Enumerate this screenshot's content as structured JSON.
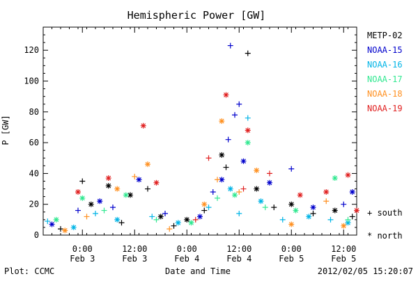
{
  "chart_data": {
    "type": "scatter",
    "title": "Hemispheric Power [GW]",
    "ylabel": "P [GW]",
    "xlabel": "Date and Time",
    "ylim": [
      0,
      135
    ],
    "yticks": [
      0,
      20,
      40,
      60,
      80,
      100,
      120
    ],
    "xlim": [
      "2012-02-02T15:00",
      "2012-02-05T15:00"
    ],
    "xticks": [
      {
        "time": "2012-02-03T00:00",
        "line1": "0:00",
        "line2": "Feb 3"
      },
      {
        "time": "2012-02-03T12:00",
        "line1": "12:00",
        "line2": "Feb 3"
      },
      {
        "time": "2012-02-04T00:00",
        "line1": "0:00",
        "line2": "Feb 4"
      },
      {
        "time": "2012-02-04T12:00",
        "line1": "12:00",
        "line2": "Feb 4"
      },
      {
        "time": "2012-02-05T00:00",
        "line1": "0:00",
        "line2": "Feb 5"
      },
      {
        "time": "2012-02-05T12:00",
        "line1": "12:00",
        "line2": "Feb 5"
      }
    ],
    "legend_placement": "right",
    "series": [
      {
        "name": "METP-02",
        "color": "#000000",
        "points": [
          {
            "x": "2012-02-02T19:00",
            "y": 4,
            "h": "south"
          },
          {
            "x": "2012-02-03T00:00",
            "y": 35,
            "h": "south"
          },
          {
            "x": "2012-02-03T02:00",
            "y": 20,
            "h": "north"
          },
          {
            "x": "2012-02-03T06:00",
            "y": 32,
            "h": "north"
          },
          {
            "x": "2012-02-03T09:00",
            "y": 8,
            "h": "south"
          },
          {
            "x": "2012-02-03T11:00",
            "y": 26,
            "h": "north"
          },
          {
            "x": "2012-02-03T15:00",
            "y": 30,
            "h": "south"
          },
          {
            "x": "2012-02-03T18:00",
            "y": 12,
            "h": "north"
          },
          {
            "x": "2012-02-03T21:00",
            "y": 6,
            "h": "south"
          },
          {
            "x": "2012-02-04T00:00",
            "y": 10,
            "h": "north"
          },
          {
            "x": "2012-02-04T04:00",
            "y": 16,
            "h": "south"
          },
          {
            "x": "2012-02-04T08:00",
            "y": 52,
            "h": "north"
          },
          {
            "x": "2012-02-04T09:00",
            "y": 44,
            "h": "south"
          },
          {
            "x": "2012-02-04T14:00",
            "y": 118,
            "h": "south"
          },
          {
            "x": "2012-02-04T16:00",
            "y": 30,
            "h": "north"
          },
          {
            "x": "2012-02-04T20:00",
            "y": 18,
            "h": "south"
          },
          {
            "x": "2012-02-05T00:00",
            "y": 20,
            "h": "north"
          },
          {
            "x": "2012-02-05T05:00",
            "y": 14,
            "h": "south"
          },
          {
            "x": "2012-02-05T10:00",
            "y": 16,
            "h": "north"
          },
          {
            "x": "2012-02-05T14:00",
            "y": 12,
            "h": "south"
          }
        ]
      },
      {
        "name": "NOAA-15",
        "color": "#0000cc",
        "points": [
          {
            "x": "2012-02-02T17:00",
            "y": 7,
            "h": "north"
          },
          {
            "x": "2012-02-02T23:00",
            "y": 16,
            "h": "south"
          },
          {
            "x": "2012-02-03T04:00",
            "y": 22,
            "h": "north"
          },
          {
            "x": "2012-02-03T07:00",
            "y": 18,
            "h": "south"
          },
          {
            "x": "2012-02-03T13:00",
            "y": 36,
            "h": "north"
          },
          {
            "x": "2012-02-03T19:00",
            "y": 14,
            "h": "south"
          },
          {
            "x": "2012-02-04T03:00",
            "y": 12,
            "h": "north"
          },
          {
            "x": "2012-02-04T06:00",
            "y": 28,
            "h": "south"
          },
          {
            "x": "2012-02-04T08:00",
            "y": 36,
            "h": "north"
          },
          {
            "x": "2012-02-04T09:30",
            "y": 62,
            "h": "south"
          },
          {
            "x": "2012-02-04T10:00",
            "y": 123,
            "h": "south"
          },
          {
            "x": "2012-02-04T11:00",
            "y": 78,
            "h": "south"
          },
          {
            "x": "2012-02-04T12:00",
            "y": 85,
            "h": "south"
          },
          {
            "x": "2012-02-04T13:00",
            "y": 48,
            "h": "north"
          },
          {
            "x": "2012-02-04T19:00",
            "y": 34,
            "h": "north"
          },
          {
            "x": "2012-02-05T00:00",
            "y": 43,
            "h": "south"
          },
          {
            "x": "2012-02-05T05:00",
            "y": 18,
            "h": "north"
          },
          {
            "x": "2012-02-05T12:00",
            "y": 20,
            "h": "south"
          },
          {
            "x": "2012-02-05T14:00",
            "y": 28,
            "h": "north"
          }
        ]
      },
      {
        "name": "NOAA-16",
        "color": "#00b4e6",
        "points": [
          {
            "x": "2012-02-02T16:00",
            "y": 9,
            "h": "south"
          },
          {
            "x": "2012-02-02T22:00",
            "y": 5,
            "h": "north"
          },
          {
            "x": "2012-02-03T03:00",
            "y": 14,
            "h": "south"
          },
          {
            "x": "2012-02-03T08:00",
            "y": 10,
            "h": "north"
          },
          {
            "x": "2012-02-03T16:00",
            "y": 12,
            "h": "south"
          },
          {
            "x": "2012-02-03T22:00",
            "y": 8,
            "h": "north"
          },
          {
            "x": "2012-02-04T05:00",
            "y": 18,
            "h": "south"
          },
          {
            "x": "2012-02-04T10:00",
            "y": 30,
            "h": "north"
          },
          {
            "x": "2012-02-04T12:00",
            "y": 14,
            "h": "south"
          },
          {
            "x": "2012-02-04T14:00",
            "y": 76,
            "h": "south"
          },
          {
            "x": "2012-02-04T17:00",
            "y": 22,
            "h": "north"
          },
          {
            "x": "2012-02-04T22:00",
            "y": 10,
            "h": "south"
          },
          {
            "x": "2012-02-05T04:00",
            "y": 12,
            "h": "north"
          },
          {
            "x": "2012-02-05T09:00",
            "y": 10,
            "h": "south"
          },
          {
            "x": "2012-02-05T13:00",
            "y": 8,
            "h": "north"
          }
        ]
      },
      {
        "name": "NOAA-17",
        "color": "#30e890",
        "points": [
          {
            "x": "2012-02-02T18:00",
            "y": 10,
            "h": "north"
          },
          {
            "x": "2012-02-03T00:00",
            "y": 24,
            "h": "north"
          },
          {
            "x": "2012-02-03T05:00",
            "y": 16,
            "h": "south"
          },
          {
            "x": "2012-02-03T10:00",
            "y": 26,
            "h": "north"
          },
          {
            "x": "2012-02-03T17:00",
            "y": 10,
            "h": "south"
          },
          {
            "x": "2012-02-04T01:00",
            "y": 8,
            "h": "north"
          },
          {
            "x": "2012-02-04T07:00",
            "y": 24,
            "h": "south"
          },
          {
            "x": "2012-02-04T11:00",
            "y": 26,
            "h": "north"
          },
          {
            "x": "2012-02-04T14:00",
            "y": 60,
            "h": "north"
          },
          {
            "x": "2012-02-04T18:00",
            "y": 18,
            "h": "south"
          },
          {
            "x": "2012-02-05T01:00",
            "y": 16,
            "h": "north"
          },
          {
            "x": "2012-02-05T10:00",
            "y": 37,
            "h": "north"
          },
          {
            "x": "2012-02-05T13:00",
            "y": 10,
            "h": "south"
          }
        ]
      },
      {
        "name": "NOAA-18",
        "color": "#ff9020",
        "points": [
          {
            "x": "2012-02-02T20:00",
            "y": 3,
            "h": "north"
          },
          {
            "x": "2012-02-03T01:00",
            "y": 12,
            "h": "south"
          },
          {
            "x": "2012-02-03T08:00",
            "y": 30,
            "h": "north"
          },
          {
            "x": "2012-02-03T12:00",
            "y": 38,
            "h": "south"
          },
          {
            "x": "2012-02-03T15:00",
            "y": 46,
            "h": "north"
          },
          {
            "x": "2012-02-03T20:00",
            "y": 4,
            "h": "south"
          },
          {
            "x": "2012-02-04T04:00",
            "y": 20,
            "h": "north"
          },
          {
            "x": "2012-02-04T07:00",
            "y": 36,
            "h": "south"
          },
          {
            "x": "2012-02-04T08:00",
            "y": 74,
            "h": "north"
          },
          {
            "x": "2012-02-04T12:00",
            "y": 28,
            "h": "south"
          },
          {
            "x": "2012-02-04T16:00",
            "y": 42,
            "h": "north"
          },
          {
            "x": "2012-02-05T00:00",
            "y": 7,
            "h": "north"
          },
          {
            "x": "2012-02-05T08:00",
            "y": 22,
            "h": "south"
          },
          {
            "x": "2012-02-05T12:00",
            "y": 6,
            "h": "north"
          }
        ]
      },
      {
        "name": "NOAA-19",
        "color": "#e02020",
        "points": [
          {
            "x": "2012-02-02T23:00",
            "y": 28,
            "h": "north"
          },
          {
            "x": "2012-02-03T06:00",
            "y": 37,
            "h": "north"
          },
          {
            "x": "2012-02-03T14:00",
            "y": 71,
            "h": "north"
          },
          {
            "x": "2012-02-03T17:00",
            "y": 34,
            "h": "north"
          },
          {
            "x": "2012-02-04T02:00",
            "y": 10,
            "h": "south"
          },
          {
            "x": "2012-02-04T05:00",
            "y": 50,
            "h": "south"
          },
          {
            "x": "2012-02-04T09:00",
            "y": 91,
            "h": "north"
          },
          {
            "x": "2012-02-04T13:00",
            "y": 30,
            "h": "south"
          },
          {
            "x": "2012-02-04T14:00",
            "y": 68,
            "h": "north"
          },
          {
            "x": "2012-02-04T19:00",
            "y": 40,
            "h": "south"
          },
          {
            "x": "2012-02-05T02:00",
            "y": 26,
            "h": "north"
          },
          {
            "x": "2012-02-05T08:00",
            "y": 28,
            "h": "north"
          },
          {
            "x": "2012-02-05T13:00",
            "y": 39,
            "h": "north"
          },
          {
            "x": "2012-02-05T15:00",
            "y": 16,
            "h": "north"
          }
        ]
      }
    ]
  },
  "legend": {
    "items": [
      {
        "label": "METP-02",
        "color": "#000000"
      },
      {
        "label": "NOAA-15",
        "color": "#0000cc"
      },
      {
        "label": "NOAA-16",
        "color": "#00b4e6"
      },
      {
        "label": "NOAA-17",
        "color": "#30e890"
      },
      {
        "label": "NOAA-18",
        "color": "#ff9020"
      },
      {
        "label": "NOAA-19",
        "color": "#e02020"
      }
    ],
    "south_label": "+ south",
    "north_label": "* north"
  },
  "footer": {
    "plot_credit": "Plot: CCMC",
    "timestamp": "2012/02/05 15:20:07"
  }
}
